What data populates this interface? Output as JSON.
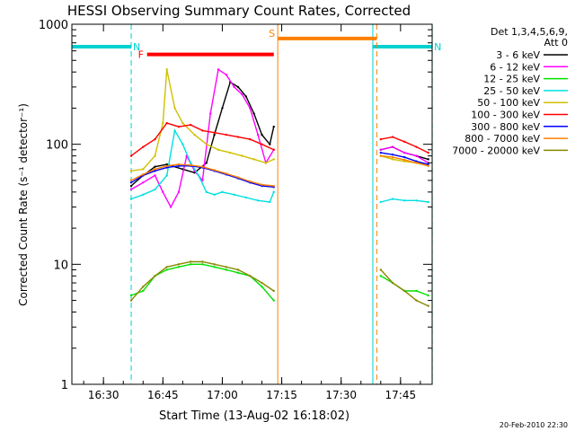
{
  "chart_data": {
    "type": "line",
    "title": "HESSI Observing Summary Count Rates, Corrected",
    "xlabel": "Start Time (13-Aug-02 16:18:02)",
    "ylabel": "Corrected Count Rate (s⁻¹ detector⁻¹)",
    "yscale": "log",
    "ylim": [
      1,
      1000
    ],
    "xlim_minutes": [
      16.367,
      17.883
    ],
    "x_ticks": [
      "16:30",
      "16:45",
      "17:00",
      "17:15",
      "17:30",
      "17:45"
    ],
    "y_ticks": [
      "1",
      "10",
      "100",
      "1000"
    ],
    "footer": "20-Feb-2010 22:30",
    "legend": {
      "placement": "top-right, outside plot",
      "header": [
        "Det 1,3,4,5,6,9,",
        "Att 0"
      ],
      "entries": [
        {
          "label": "3 - 6 keV",
          "color": "#000000"
        },
        {
          "label": "6 - 12 keV",
          "color": "#ff00ff"
        },
        {
          "label": "12 - 25 keV",
          "color": "#00e000"
        },
        {
          "label": "25 - 50 keV",
          "color": "#00e0e0"
        },
        {
          "label": "50 - 100 keV",
          "color": "#d0c000"
        },
        {
          "label": "100 - 300 keV",
          "color": "#ff0000"
        },
        {
          "label": "300 - 800 keV",
          "color": "#0000ff"
        },
        {
          "label": "800 - 7000 keV",
          "color": "#ff8000"
        },
        {
          "label": "7000 - 20000 keV",
          "color": "#888800"
        }
      ]
    },
    "gaps": [
      {
        "start": "17:13",
        "end": "17:39"
      }
    ],
    "series": [
      {
        "name": "3 - 6 keV",
        "color": "#000000",
        "x": [
          "16:37",
          "16:40",
          "16:43",
          "16:46",
          "16:50",
          "16:53",
          "16:56",
          "16:58",
          "17:00",
          "17:02",
          "17:04",
          "17:06",
          "17:08",
          "17:10",
          "17:12",
          "17:13",
          "17:40",
          "17:43",
          "17:46",
          "17:49",
          "17:52"
        ],
        "y": [
          45,
          55,
          65,
          68,
          62,
          58,
          70,
          120,
          200,
          330,
          300,
          250,
          180,
          120,
          100,
          140,
          90,
          95,
          85,
          80,
          75
        ]
      },
      {
        "name": "6 - 12 keV",
        "color": "#ff00ff",
        "x": [
          "16:37",
          "16:40",
          "16:43",
          "16:45",
          "16:47",
          "16:49",
          "16:51",
          "16:53",
          "16:55",
          "16:57",
          "16:59",
          "17:01",
          "17:03",
          "17:05",
          "17:07",
          "17:09",
          "17:11",
          "17:13",
          "17:40",
          "17:43",
          "17:46",
          "17:49",
          "17:52"
        ],
        "y": [
          42,
          48,
          55,
          40,
          30,
          40,
          80,
          60,
          50,
          180,
          420,
          380,
          300,
          260,
          200,
          120,
          70,
          90,
          90,
          95,
          85,
          80,
          70
        ]
      },
      {
        "name": "12 - 25 keV",
        "color": "#00e000",
        "x": [
          "16:37",
          "16:40",
          "16:43",
          "16:46",
          "16:49",
          "16:52",
          "16:55",
          "16:58",
          "17:01",
          "17:04",
          "17:07",
          "17:10",
          "17:13",
          "17:40",
          "17:43",
          "17:46",
          "17:49",
          "17:52"
        ],
        "y": [
          5.5,
          6,
          8,
          9,
          9.5,
          10,
          10,
          9.5,
          9,
          8.5,
          8,
          6.5,
          5,
          8,
          7,
          6,
          6,
          5.5
        ]
      },
      {
        "name": "25 - 50 keV",
        "color": "#00e0e0",
        "x": [
          "16:37",
          "16:40",
          "16:43",
          "16:46",
          "16:48",
          "16:50",
          "16:52",
          "16:54",
          "16:56",
          "16:58",
          "17:00",
          "17:03",
          "17:06",
          "17:09",
          "17:12",
          "17:13",
          "17:40",
          "17:43",
          "17:46",
          "17:49",
          "17:52"
        ],
        "y": [
          35,
          38,
          42,
          55,
          130,
          100,
          70,
          55,
          40,
          38,
          40,
          38,
          36,
          34,
          33,
          40,
          33,
          35,
          34,
          34,
          33
        ]
      },
      {
        "name": "50 - 100 keV",
        "color": "#d0c000",
        "x": [
          "16:37",
          "16:40",
          "16:43",
          "16:45",
          "16:46",
          "16:48",
          "16:50",
          "16:53",
          "16:56",
          "16:59",
          "17:02",
          "17:05",
          "17:08",
          "17:11",
          "17:13",
          "17:40",
          "17:43",
          "17:46",
          "17:49",
          "17:52"
        ],
        "y": [
          60,
          62,
          80,
          150,
          420,
          200,
          150,
          120,
          100,
          90,
          85,
          80,
          75,
          70,
          75,
          80,
          75,
          72,
          70,
          68
        ]
      },
      {
        "name": "100 - 300 keV",
        "color": "#ff0000",
        "x": [
          "16:37",
          "16:40",
          "16:43",
          "16:46",
          "16:49",
          "16:52",
          "16:55",
          "16:58",
          "17:01",
          "17:04",
          "17:07",
          "17:10",
          "17:13",
          "17:40",
          "17:43",
          "17:46",
          "17:49",
          "17:52"
        ],
        "y": [
          80,
          95,
          110,
          150,
          140,
          145,
          130,
          125,
          120,
          115,
          110,
          100,
          90,
          110,
          115,
          105,
          95,
          85
        ]
      },
      {
        "name": "300 - 800 keV",
        "color": "#0000ff",
        "x": [
          "16:37",
          "16:40",
          "16:43",
          "16:46",
          "16:49",
          "16:52",
          "16:55",
          "16:58",
          "17:01",
          "17:04",
          "17:07",
          "17:10",
          "17:13",
          "17:40",
          "17:43",
          "17:46",
          "17:49",
          "17:52"
        ],
        "y": [
          48,
          55,
          60,
          64,
          66,
          66,
          64,
          60,
          56,
          52,
          48,
          45,
          44,
          85,
          82,
          78,
          72,
          68
        ]
      },
      {
        "name": "800 - 7000 keV",
        "color": "#ff8000",
        "x": [
          "16:37",
          "16:40",
          "16:43",
          "16:46",
          "16:49",
          "16:52",
          "16:55",
          "16:58",
          "17:01",
          "17:04",
          "17:07",
          "17:10",
          "17:13",
          "17:40",
          "17:43",
          "17:46",
          "17:49",
          "17:52"
        ],
        "y": [
          50,
          56,
          62,
          66,
          68,
          67,
          65,
          61,
          57,
          53,
          49,
          46,
          45,
          80,
          78,
          74,
          70,
          66
        ]
      },
      {
        "name": "7000 - 20000 keV",
        "color": "#888800",
        "x": [
          "16:37",
          "16:40",
          "16:43",
          "16:46",
          "16:49",
          "16:52",
          "16:55",
          "16:58",
          "17:01",
          "17:04",
          "17:07",
          "17:10",
          "17:13",
          "17:40",
          "17:43",
          "17:46",
          "17:49",
          "17:52"
        ],
        "y": [
          5,
          6.5,
          8,
          9.5,
          10,
          10.5,
          10.5,
          10,
          9.5,
          9,
          8,
          7,
          6,
          9,
          7,
          6,
          5,
          4.5
        ]
      }
    ],
    "annotations": [
      {
        "label": "N",
        "color": "#00d0d0",
        "kind": "night",
        "start": "16:18",
        "end": "16:37",
        "y": 650
      },
      {
        "label": "N",
        "color": "#00d0d0",
        "kind": "night",
        "start": "17:38",
        "end": "17:53",
        "y": 650
      },
      {
        "label": "F",
        "color": "#ff0000",
        "kind": "flare",
        "start": "16:41",
        "end": "17:13",
        "y": 560
      },
      {
        "label": "S",
        "color": "#ff8000",
        "kind": "saa",
        "start": "17:14",
        "end": "17:39",
        "y": 760
      }
    ]
  }
}
